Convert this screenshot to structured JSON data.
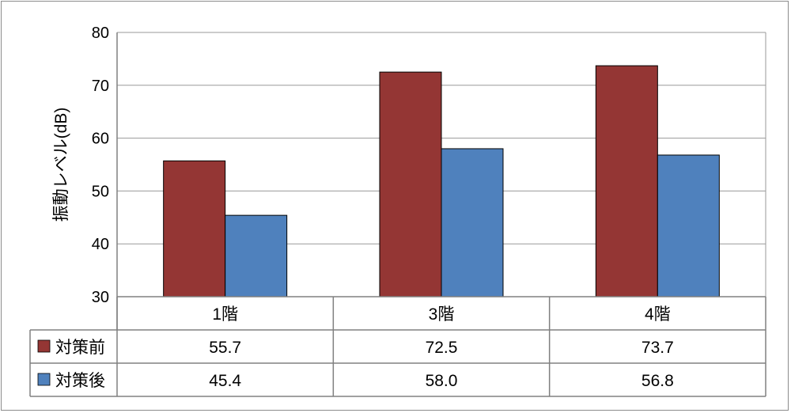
{
  "chart_data": {
    "type": "bar",
    "ylabel": "振動レベル(dB)",
    "ylim": [
      30,
      80
    ],
    "yticks": [
      30,
      40,
      50,
      60,
      70,
      80
    ],
    "grid": true,
    "legend": "data-table-left",
    "categories": [
      "1階",
      "3階",
      "4階"
    ],
    "series": [
      {
        "name": "対策前",
        "color": "#943634",
        "values": [
          55.7,
          72.5,
          73.7
        ],
        "labels": [
          "55.7",
          "72.5",
          "73.7"
        ]
      },
      {
        "name": "対策後",
        "color": "#4f81bd",
        "values": [
          45.4,
          58.0,
          56.8
        ],
        "labels": [
          "45.4",
          "58.0",
          "56.8"
        ]
      }
    ]
  }
}
